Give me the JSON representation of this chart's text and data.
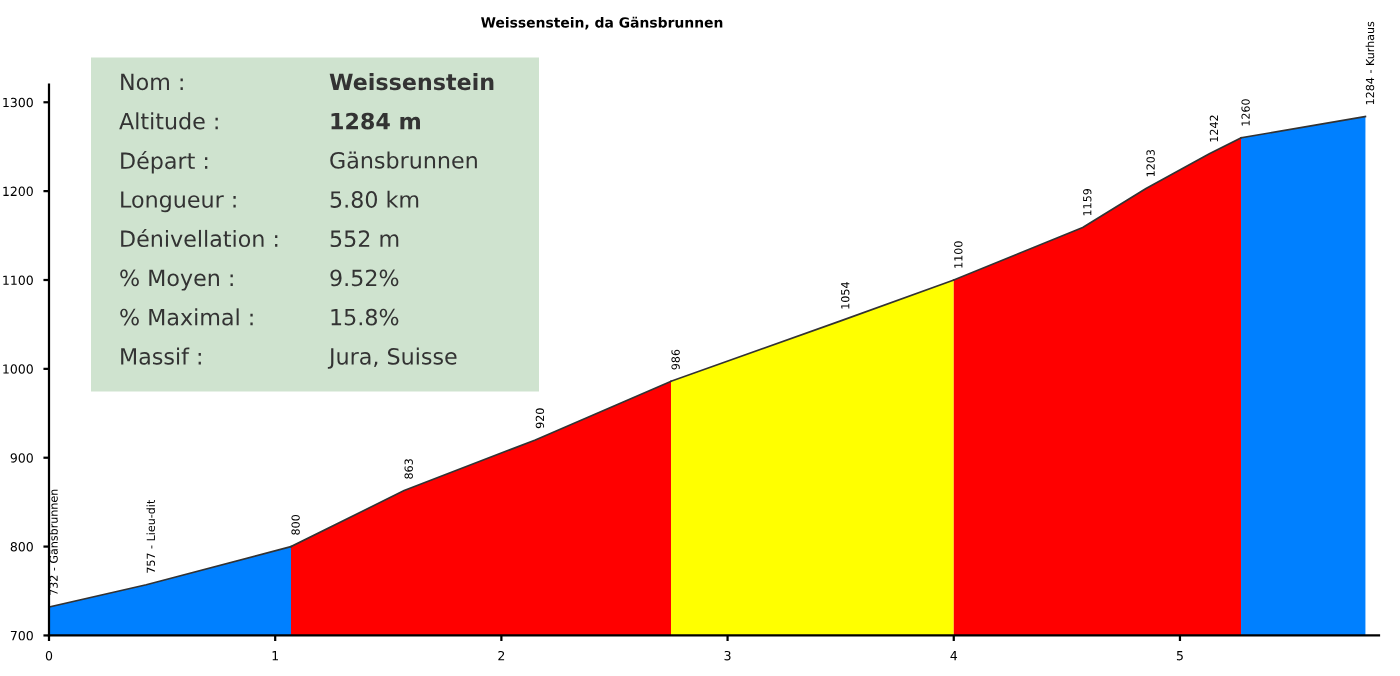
{
  "chart_data": {
    "type": "area",
    "title": "Weissenstein, da Gänsbrunnen",
    "series": [
      {
        "color": "#0080ff",
        "x": [
          0,
          0.43,
          1.07
        ],
        "values": [
          732,
          757,
          800
        ]
      },
      {
        "color": "#ff0000",
        "x": [
          1.07,
          1.57,
          2.15,
          2.75
        ],
        "values": [
          800,
          863,
          920,
          986
        ]
      },
      {
        "color": "#ffff00",
        "x": [
          2.75,
          3.5,
          4.0
        ],
        "values": [
          986,
          1054,
          1100
        ]
      },
      {
        "color": "#ff0000",
        "x": [
          4.0,
          4.57,
          4.85,
          5.13,
          5.27
        ],
        "values": [
          1100,
          1159,
          1203,
          1242,
          1260
        ]
      },
      {
        "color": "#0080ff",
        "x": [
          5.27,
          5.82
        ],
        "values": [
          1260,
          1284
        ]
      }
    ],
    "annotations": [
      "Nom :",
      "Weissenstein",
      "Altitude :",
      "1284 m",
      "Départ :",
      "Gänsbrunnen",
      "Longueur :",
      "5.80 km",
      "Dénivellation :",
      "552 m",
      "% Moyen :",
      "9.52%",
      "% Maximal :",
      "15.8%",
      "Massif :",
      "Jura, Suisse",
      {
        "text": "732 - Gänsbrunnen",
        "x": 0,
        "y": 732
      },
      {
        "text": "757 - Lieu-dit",
        "x": 0.43,
        "y": 757
      },
      {
        "text": "800",
        "x": 1.07,
        "y": 800
      },
      {
        "text": "863",
        "x": 1.57,
        "y": 863
      },
      {
        "text": "920",
        "x": 2.15,
        "y": 920
      },
      {
        "text": "986",
        "x": 2.75,
        "y": 986
      },
      {
        "text": "1054",
        "x": 3.5,
        "y": 1054
      },
      {
        "text": "1100",
        "x": 4.0,
        "y": 1100
      },
      {
        "text": "1159",
        "x": 4.57,
        "y": 1159
      },
      {
        "text": "1203",
        "x": 4.85,
        "y": 1203
      },
      {
        "text": "1242",
        "x": 5.13,
        "y": 1242
      },
      {
        "text": "1260",
        "x": 5.27,
        "y": 1260
      },
      {
        "text": "1284 - Kurhaus",
        "x": 5.82,
        "y": 1284
      }
    ],
    "xlim": [
      0,
      5.88
    ],
    "ylim": [
      700,
      1320
    ],
    "xticks": [
      0,
      1,
      2,
      3,
      4,
      5
    ],
    "yticks": [
      700,
      800,
      900,
      1000,
      1100,
      1200,
      1300
    ],
    "grid": false,
    "legend": false
  }
}
